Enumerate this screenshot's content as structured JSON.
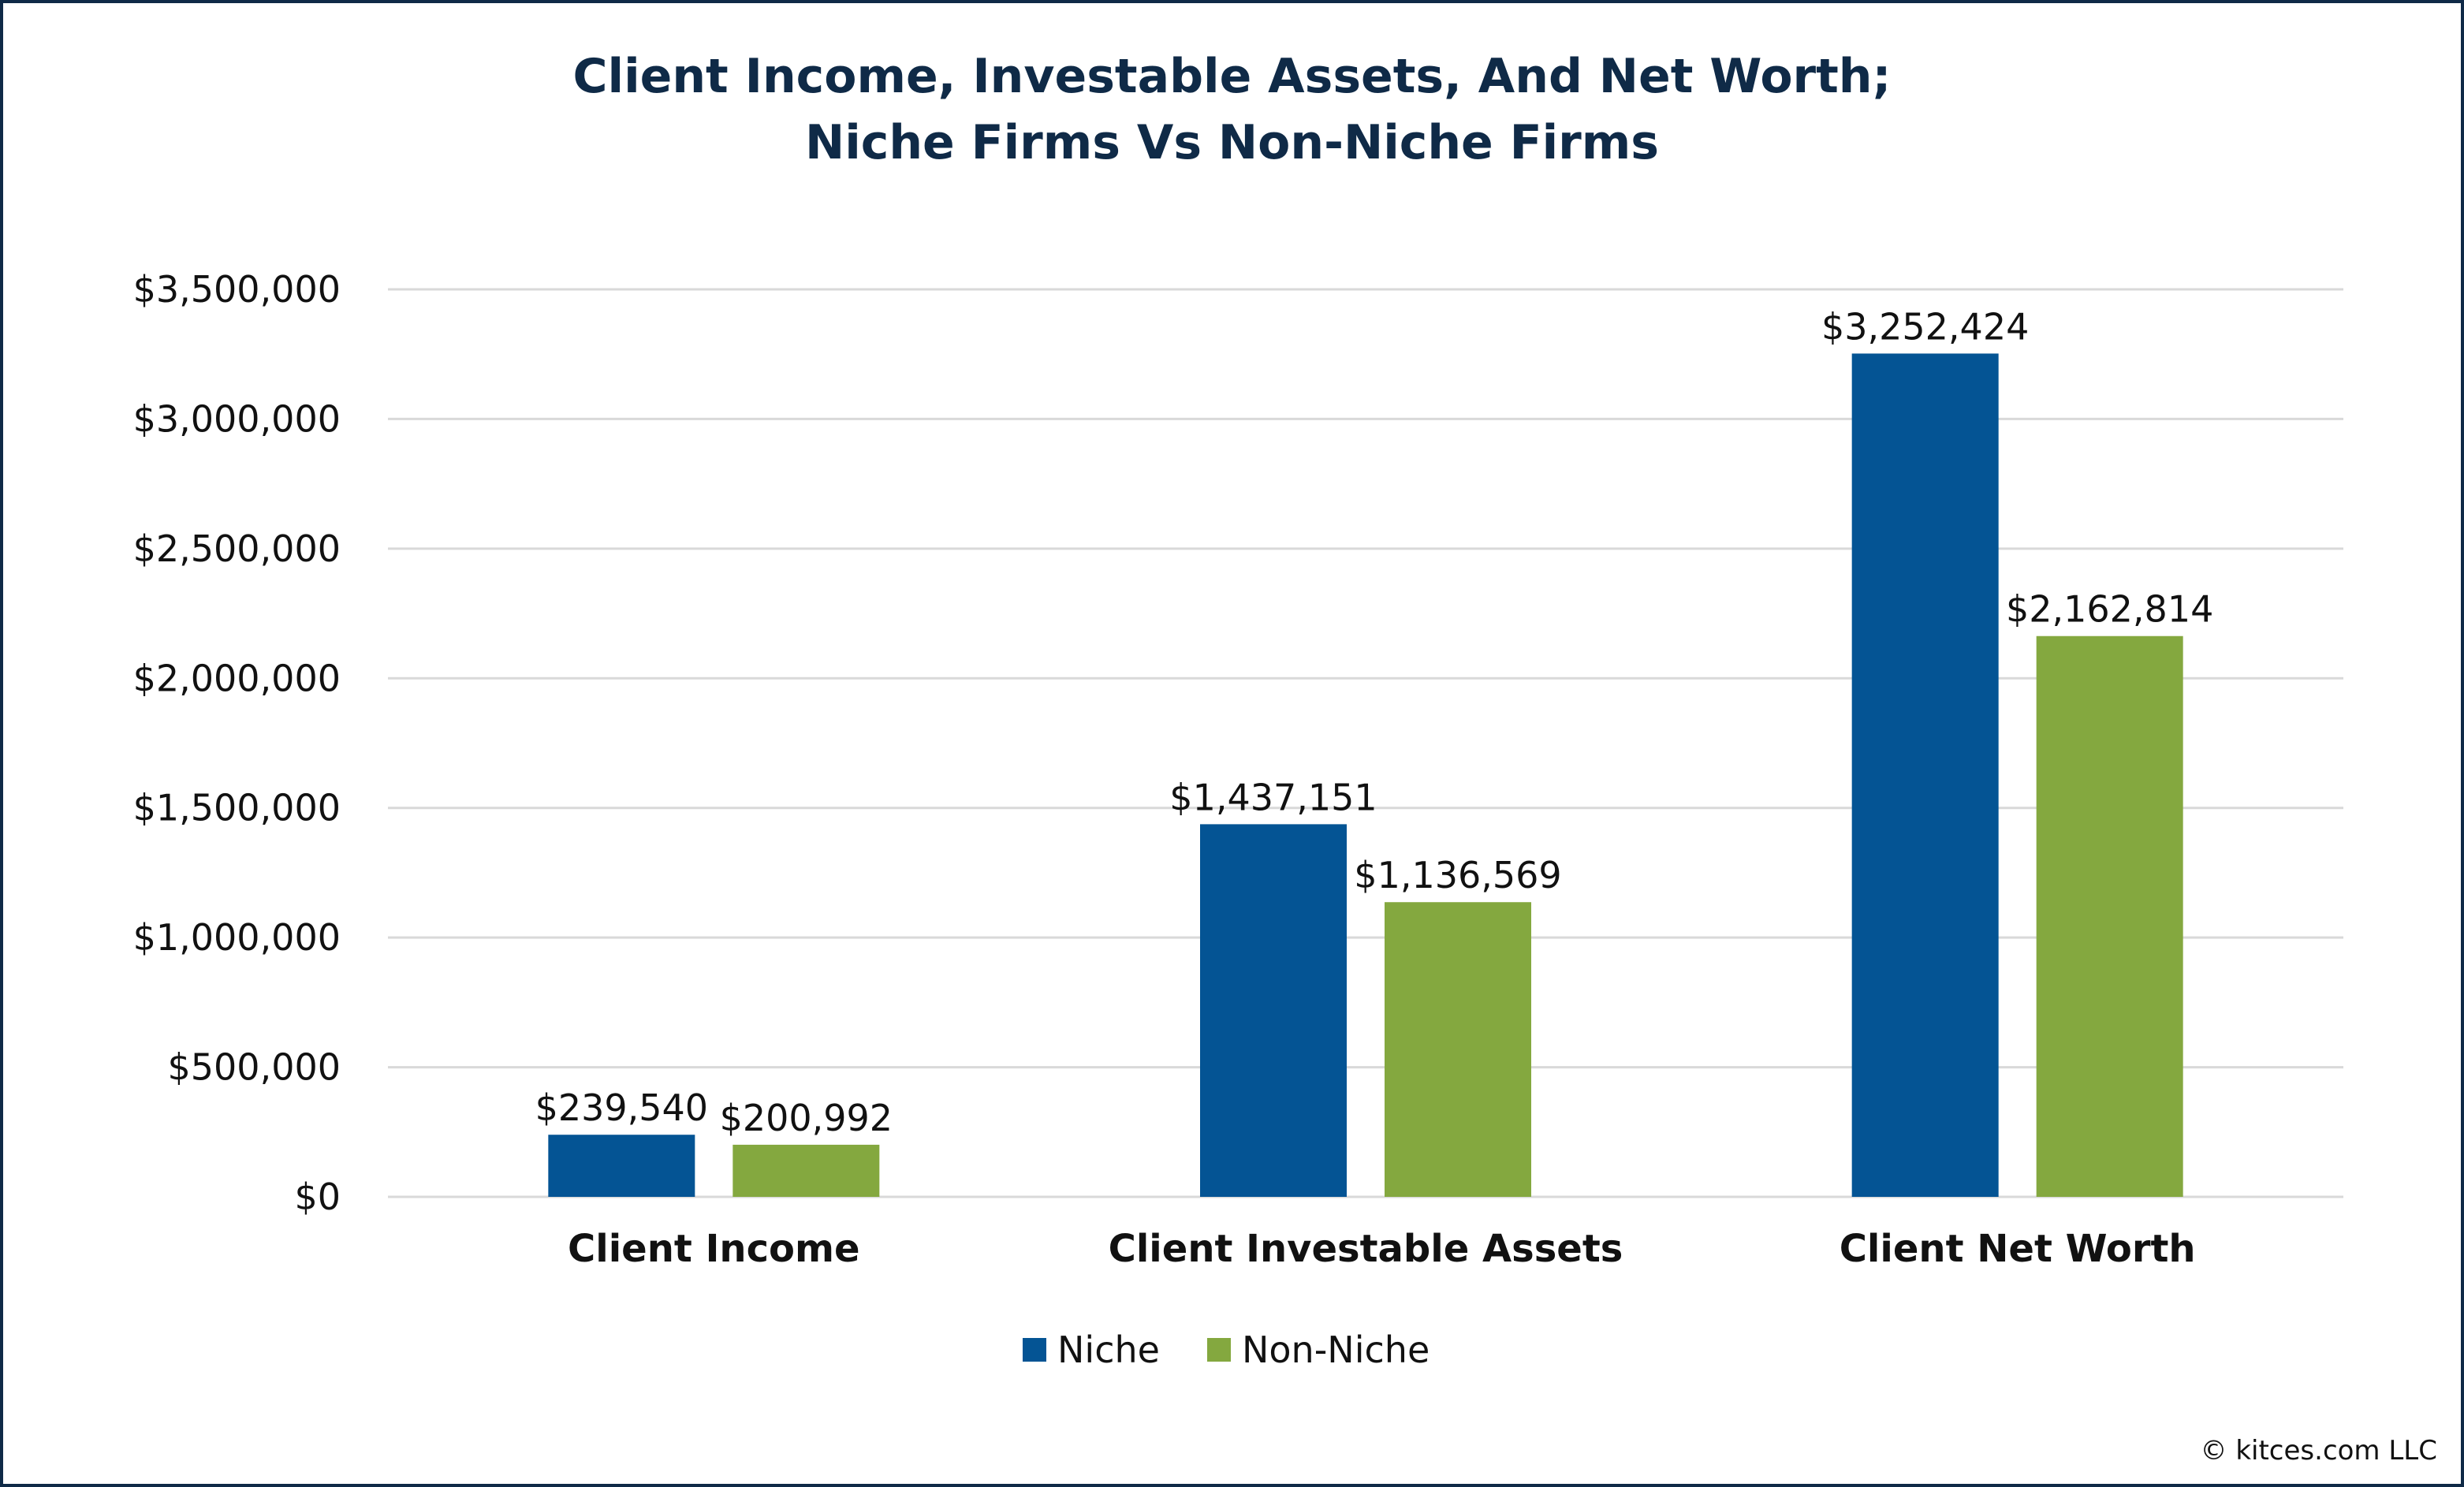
{
  "chart_data": {
    "type": "bar",
    "title_lines": [
      "Client Income, Investable Assets, And Net Worth;",
      "Niche Firms Vs Non-Niche Firms"
    ],
    "categories": [
      "Client Income",
      "Client Investable Assets",
      "Client Net Worth"
    ],
    "series": [
      {
        "name": "Niche",
        "color": "#045494",
        "values": [
          239540,
          1437151,
          3252424
        ],
        "labels": [
          "$239,540",
          "$1,437,151",
          "$3,252,424"
        ]
      },
      {
        "name": "Non-Niche",
        "color": "#84a83f",
        "values": [
          200992,
          1136569,
          2162814
        ],
        "labels": [
          "$200,992",
          "$1,136,569",
          "$2,162,814"
        ]
      }
    ],
    "ylim": [
      0,
      3500000
    ],
    "y_ticks": [
      0,
      500000,
      1000000,
      1500000,
      2000000,
      2500000,
      3000000,
      3500000
    ],
    "y_tick_labels": [
      "$0",
      "$500,000",
      "$1,000,000",
      "$1,500,000",
      "$2,000,000",
      "$2,500,000",
      "$3,000,000",
      "$3,500,000"
    ],
    "grid": true,
    "legend_position": "bottom"
  },
  "footer": {
    "copyright": "© kitces.com LLC"
  }
}
